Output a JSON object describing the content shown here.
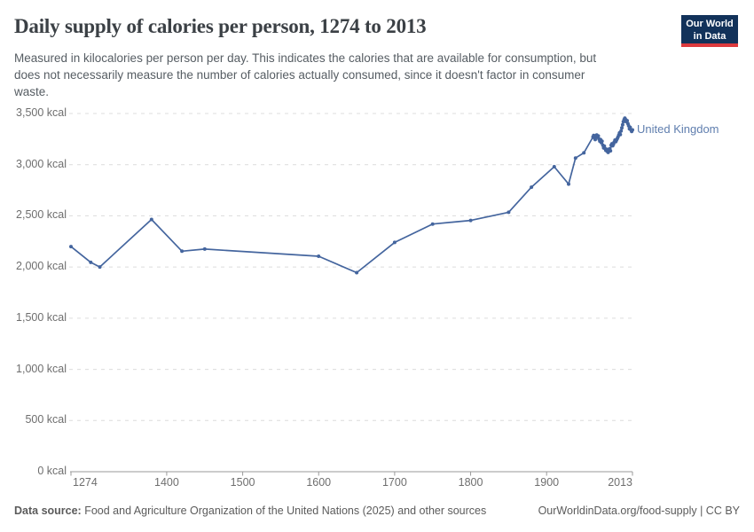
{
  "header": {
    "title": "Daily supply of calories per person, 1274 to 2013",
    "subtitle_lines": [
      "Measured in kilocalories per person per day. This indicates the calories that are available for consumption, but",
      "does not necessarily measure the number of calories actually consumed, since it doesn't factor in consumer",
      "waste."
    ],
    "logo": {
      "line1": "Our World",
      "line2": "in Data",
      "bg_color": "#12325a",
      "bar_color": "#dc3a3e"
    }
  },
  "chart_data": {
    "type": "line",
    "title": "Daily supply of calories per person, 1274 to 2013",
    "xlabel": "",
    "ylabel": "kcal",
    "entity": "United Kingdom",
    "line_color": "#44659e",
    "grid": "dashed horizontal",
    "legend_position": "end-of-line label",
    "x_range": [
      1274,
      2013
    ],
    "y_range": [
      0,
      3500
    ],
    "x_ticks": [
      {
        "year": 1274,
        "label": "1274",
        "align": "left"
      },
      {
        "year": 1400,
        "label": "1400",
        "align": "center"
      },
      {
        "year": 1500,
        "label": "1500",
        "align": "center"
      },
      {
        "year": 1600,
        "label": "1600",
        "align": "center"
      },
      {
        "year": 1700,
        "label": "1700",
        "align": "center"
      },
      {
        "year": 1800,
        "label": "1800",
        "align": "center"
      },
      {
        "year": 1900,
        "label": "1900",
        "align": "center"
      },
      {
        "year": 2013,
        "label": "2013",
        "align": "right"
      }
    ],
    "y_ticks": [
      {
        "value": 0,
        "label": "0 kcal"
      },
      {
        "value": 500,
        "label": "500 kcal"
      },
      {
        "value": 1000,
        "label": "1,000 kcal"
      },
      {
        "value": 1500,
        "label": "1,500 kcal"
      },
      {
        "value": 2000,
        "label": "2,000 kcal"
      },
      {
        "value": 2500,
        "label": "2,500 kcal"
      },
      {
        "value": 3000,
        "label": "3,000 kcal"
      },
      {
        "value": 3500,
        "label": "3,500 kcal"
      }
    ],
    "series": [
      {
        "name": "United Kingdom",
        "points": [
          [
            1274,
            2200
          ],
          [
            1300,
            2045
          ],
          [
            1312,
            2000
          ],
          [
            1380,
            2465
          ],
          [
            1420,
            2155
          ],
          [
            1450,
            2175
          ],
          [
            1600,
            2105
          ],
          [
            1650,
            1945
          ],
          [
            1700,
            2240
          ],
          [
            1750,
            2420
          ],
          [
            1800,
            2455
          ],
          [
            1850,
            2535
          ],
          [
            1880,
            2780
          ],
          [
            1910,
            2980
          ],
          [
            1929,
            2810
          ],
          [
            1938,
            3065
          ],
          [
            1949,
            3115
          ],
          [
            1961,
            3270
          ],
          [
            1962,
            3285
          ],
          [
            1963,
            3260
          ],
          [
            1964,
            3245
          ],
          [
            1965,
            3280
          ],
          [
            1966,
            3290
          ],
          [
            1967,
            3268
          ],
          [
            1968,
            3280
          ],
          [
            1969,
            3250
          ],
          [
            1970,
            3230
          ],
          [
            1971,
            3245
          ],
          [
            1972,
            3215
          ],
          [
            1973,
            3230
          ],
          [
            1974,
            3190
          ],
          [
            1975,
            3165
          ],
          [
            1976,
            3180
          ],
          [
            1977,
            3155
          ],
          [
            1978,
            3140
          ],
          [
            1979,
            3150
          ],
          [
            1980,
            3130
          ],
          [
            1981,
            3120
          ],
          [
            1982,
            3140
          ],
          [
            1983,
            3155
          ],
          [
            1984,
            3135
          ],
          [
            1985,
            3190
          ],
          [
            1986,
            3205
          ],
          [
            1987,
            3185
          ],
          [
            1988,
            3200
          ],
          [
            1989,
            3220
          ],
          [
            1990,
            3240
          ],
          [
            1991,
            3225
          ],
          [
            1992,
            3240
          ],
          [
            1993,
            3255
          ],
          [
            1994,
            3270
          ],
          [
            1995,
            3290
          ],
          [
            1996,
            3310
          ],
          [
            1997,
            3295
          ],
          [
            1998,
            3330
          ],
          [
            1999,
            3360
          ],
          [
            2000,
            3390
          ],
          [
            2001,
            3420
          ],
          [
            2002,
            3440
          ],
          [
            2003,
            3455
          ],
          [
            2004,
            3440
          ],
          [
            2005,
            3420
          ],
          [
            2006,
            3430
          ],
          [
            2007,
            3400
          ],
          [
            2008,
            3380
          ],
          [
            2009,
            3350
          ],
          [
            2010,
            3365
          ],
          [
            2011,
            3340
          ],
          [
            2012,
            3325
          ],
          [
            2013,
            3340
          ]
        ]
      }
    ]
  },
  "footer": {
    "source_label": "Data source:",
    "source_text": " Food and Agriculture Organization of the United Nations (2025) and other sources",
    "credit": "OurWorldinData.org/food-supply | CC BY"
  }
}
